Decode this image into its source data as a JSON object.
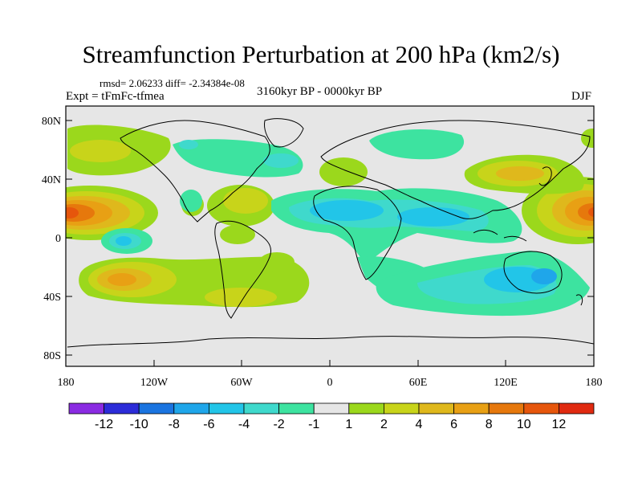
{
  "title": "Streamfunction Perturbation at 200 hPa (km2/s)",
  "stats": "rmsd= 2.06233  diff= -2.34384e-08",
  "experiment": "Expt = tFmFc-tfmea",
  "period": "3160kyr BP - 0000kyr BP",
  "season": "DJF",
  "axes": {
    "lat_ticks": [
      "80N",
      "40N",
      "0",
      "40S",
      "80S"
    ],
    "lon_ticks": [
      "180",
      "120W",
      "60W",
      "0",
      "60E",
      "120E",
      "180"
    ]
  },
  "colorbar": {
    "colors": [
      "#8a2be2",
      "#2c2cd8",
      "#1a74e0",
      "#1fa6ea",
      "#22c5e8",
      "#3fd9cc",
      "#3de3a0",
      "#e6e6e6",
      "#9bd81c",
      "#c8d41a",
      "#dfb81c",
      "#e8a014",
      "#e6780c",
      "#e6560c",
      "#e02a10"
    ],
    "labels": [
      "-12",
      "-10",
      "-8",
      "-6",
      "-4",
      "-2",
      "-1",
      "1",
      "2",
      "4",
      "6",
      "8",
      "10",
      "12"
    ]
  }
}
